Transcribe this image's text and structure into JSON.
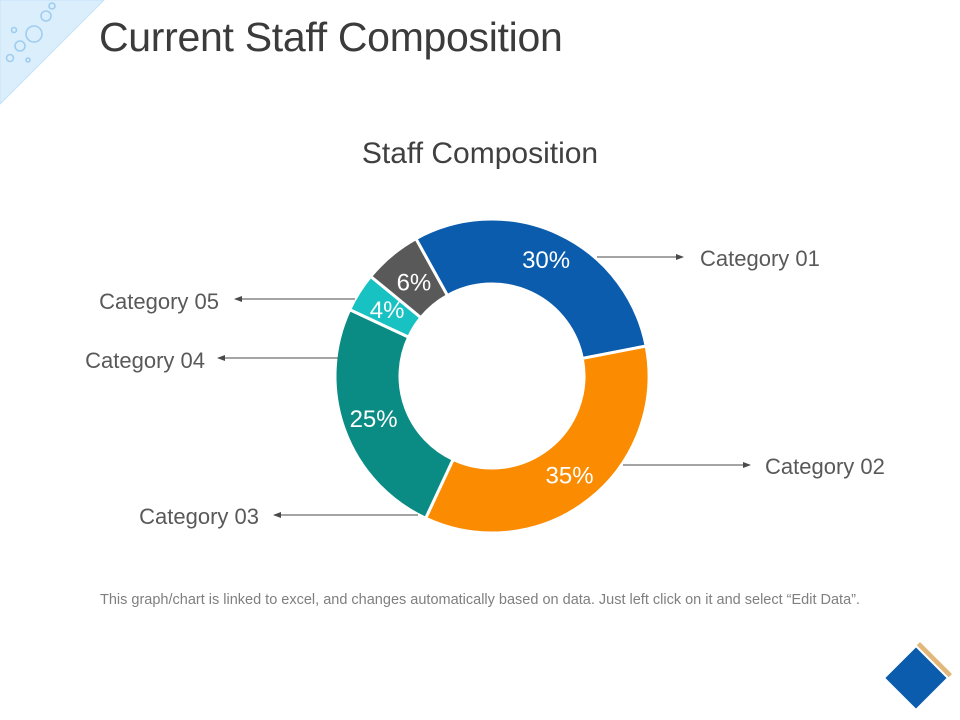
{
  "slide": {
    "title": "Current Staff Composition",
    "footnote": "This graph/chart is linked to excel, and changes automatically based on data. Just left click on it and select “Edit Data”."
  },
  "colors": {
    "corner_light": "#dbeefb",
    "corner_dark": "#9fcdf0",
    "diamond_fill": "#0b5cad",
    "diamond_shadow": "#e2b87a"
  },
  "icons": {
    "corner": "bubbles-corner-decoration",
    "nav": "diamond-icon"
  },
  "chart_data": {
    "type": "pie",
    "style": "donut",
    "title": "Staff Composition",
    "categories": [
      "Category 01",
      "Category 02",
      "Category 03",
      "Category 04",
      "Category 05"
    ],
    "values": [
      30,
      35,
      25,
      4,
      6
    ],
    "labels": [
      "30%",
      "35%",
      "25%",
      "4%",
      "6%"
    ],
    "colors": [
      "#0b5cad",
      "#fb8b00",
      "#0a8c84",
      "#18c2c2",
      "#595959"
    ],
    "start_angle_deg": -29,
    "direction": "clockwise",
    "legend": "callout labels with arrows"
  }
}
